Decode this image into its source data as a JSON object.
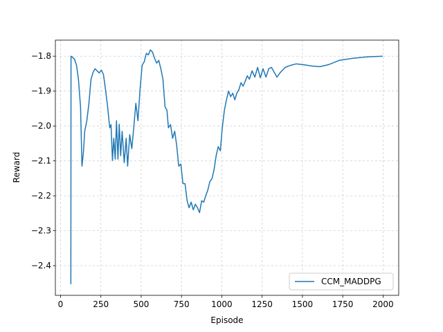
{
  "chart_data": {
    "type": "line",
    "xlabel": "Episode",
    "ylabel": "Reward",
    "x": [
      64,
      65,
      86,
      99,
      111,
      124,
      133,
      142,
      150,
      163,
      176,
      189,
      202,
      214,
      227,
      240,
      253,
      266,
      279,
      292,
      305,
      313,
      322,
      330,
      339,
      347,
      356,
      364,
      373,
      382,
      395,
      407,
      416,
      429,
      442,
      454,
      467,
      480,
      493,
      506,
      519,
      532,
      545,
      557,
      570,
      583,
      596,
      609,
      622,
      635,
      648,
      660,
      669,
      682,
      695,
      708,
      720,
      733,
      746,
      759,
      772,
      785,
      797,
      810,
      823,
      836,
      849,
      862,
      875,
      888,
      900,
      913,
      926,
      939,
      952,
      965,
      978,
      991,
      1003,
      1016,
      1029,
      1042,
      1055,
      1068,
      1081,
      1093,
      1106,
      1119,
      1132,
      1145,
      1158,
      1171,
      1188,
      1205,
      1222,
      1239,
      1256,
      1274,
      1291,
      1308,
      1325,
      1342,
      1364,
      1394,
      1428,
      1462,
      1501,
      1557,
      1608,
      1664,
      1728,
      1814,
      1900,
      1998
    ],
    "series": [
      {
        "name": "CCM_MADDPG",
        "color": "#1f77b4",
        "values": [
          -2.453,
          -1.8,
          -1.808,
          -1.826,
          -1.866,
          -1.945,
          -2.115,
          -2.075,
          -2.015,
          -1.985,
          -1.935,
          -1.866,
          -1.846,
          -1.836,
          -1.842,
          -1.848,
          -1.84,
          -1.852,
          -1.896,
          -1.945,
          -2.005,
          -1.996,
          -2.099,
          -2.035,
          -2.095,
          -1.985,
          -2.095,
          -1.995,
          -2.085,
          -2.015,
          -2.105,
          -2.035,
          -2.115,
          -2.025,
          -2.065,
          -2.005,
          -1.935,
          -1.985,
          -1.896,
          -1.826,
          -1.816,
          -1.792,
          -1.796,
          -1.782,
          -1.788,
          -1.806,
          -1.82,
          -1.812,
          -1.836,
          -1.866,
          -1.945,
          -1.955,
          -2.005,
          -1.996,
          -2.035,
          -2.015,
          -2.055,
          -2.115,
          -2.109,
          -2.165,
          -2.165,
          -2.214,
          -2.234,
          -2.218,
          -2.24,
          -2.224,
          -2.234,
          -2.248,
          -2.214,
          -2.218,
          -2.2,
          -2.184,
          -2.159,
          -2.151,
          -2.125,
          -2.085,
          -2.059,
          -2.071,
          -2.005,
          -1.955,
          -1.925,
          -1.9,
          -1.916,
          -1.906,
          -1.925,
          -1.906,
          -1.896,
          -1.876,
          -1.886,
          -1.872,
          -1.856,
          -1.866,
          -1.842,
          -1.86,
          -1.832,
          -1.862,
          -1.836,
          -1.86,
          -1.836,
          -1.832,
          -1.846,
          -1.86,
          -1.846,
          -1.832,
          -1.826,
          -1.822,
          -1.824,
          -1.828,
          -1.83,
          -1.824,
          -1.812,
          -1.806,
          -1.802,
          -1.8
        ]
      }
    ],
    "xlim": [
      -32,
      2097
    ],
    "ylim": [
      -2.485,
      -1.754
    ],
    "xticks": [
      0,
      250,
      500,
      750,
      1000,
      1250,
      1500,
      1750,
      2000
    ],
    "yticks": [
      {
        "value": -2.4,
        "label": "−2.4"
      },
      {
        "value": -2.3,
        "label": "−2.3"
      },
      {
        "value": -2.2,
        "label": "−2.2"
      },
      {
        "value": -2.1,
        "label": "−2.1"
      },
      {
        "value": -2.0,
        "label": "−2.0"
      },
      {
        "value": -1.9,
        "label": "−1.9"
      },
      {
        "value": -1.8,
        "label": "−1.8"
      }
    ],
    "grid": true,
    "legend": "lower right"
  }
}
